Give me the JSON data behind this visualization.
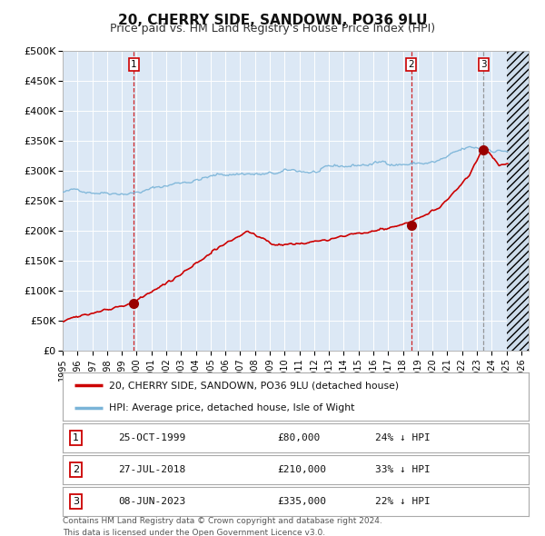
{
  "title": "20, CHERRY SIDE, SANDOWN, PO36 9LU",
  "subtitle": "Price paid vs. HM Land Registry's House Price Index (HPI)",
  "title_fontsize": 11,
  "subtitle_fontsize": 9,
  "ylabel_ticks": [
    "£0",
    "£50K",
    "£100K",
    "£150K",
    "£200K",
    "£250K",
    "£300K",
    "£350K",
    "£400K",
    "£450K",
    "£500K"
  ],
  "ytick_values": [
    0,
    50000,
    100000,
    150000,
    200000,
    250000,
    300000,
    350000,
    400000,
    450000,
    500000
  ],
  "xlim_start": 1995.0,
  "xlim_end": 2026.5,
  "ylim_min": 0,
  "ylim_max": 500000,
  "background_color": "#dce8f5",
  "grid_color": "#ffffff",
  "hpi_line_color": "#7ab4d8",
  "price_line_color": "#cc0000",
  "sale_marker_color": "#990000",
  "sale_marker_size": 7,
  "dashed_line_color_red": "#cc0000",
  "dashed_line_color_grey": "#888888",
  "legend_items": [
    "20, CHERRY SIDE, SANDOWN, PO36 9LU (detached house)",
    "HPI: Average price, detached house, Isle of Wight"
  ],
  "sales": [
    {
      "num": 1,
      "date_x": 1999.82,
      "price": 80000,
      "label": "25-OCT-1999",
      "amount": "£80,000",
      "hpi_diff": "24% ↓ HPI",
      "vline_style": "red"
    },
    {
      "num": 2,
      "date_x": 2018.57,
      "price": 210000,
      "label": "27-JUL-2018",
      "amount": "£210,000",
      "hpi_diff": "33% ↓ HPI",
      "vline_style": "red"
    },
    {
      "num": 3,
      "date_x": 2023.44,
      "price": 335000,
      "label": "08-JUN-2023",
      "amount": "£335,000",
      "hpi_diff": "22% ↓ HPI",
      "vline_style": "grey"
    }
  ],
  "footer_line1": "Contains HM Land Registry data © Crown copyright and database right 2024.",
  "footer_line2": "This data is licensed under the Open Government Licence v3.0.",
  "xtick_years": [
    1995,
    1996,
    1997,
    1998,
    1999,
    2000,
    2001,
    2002,
    2003,
    2004,
    2005,
    2006,
    2007,
    2008,
    2009,
    2010,
    2011,
    2012,
    2013,
    2014,
    2015,
    2016,
    2017,
    2018,
    2019,
    2020,
    2021,
    2022,
    2023,
    2024,
    2025,
    2026
  ],
  "hatch_start": 2025.0,
  "fig_width": 6.0,
  "fig_height": 5.9
}
